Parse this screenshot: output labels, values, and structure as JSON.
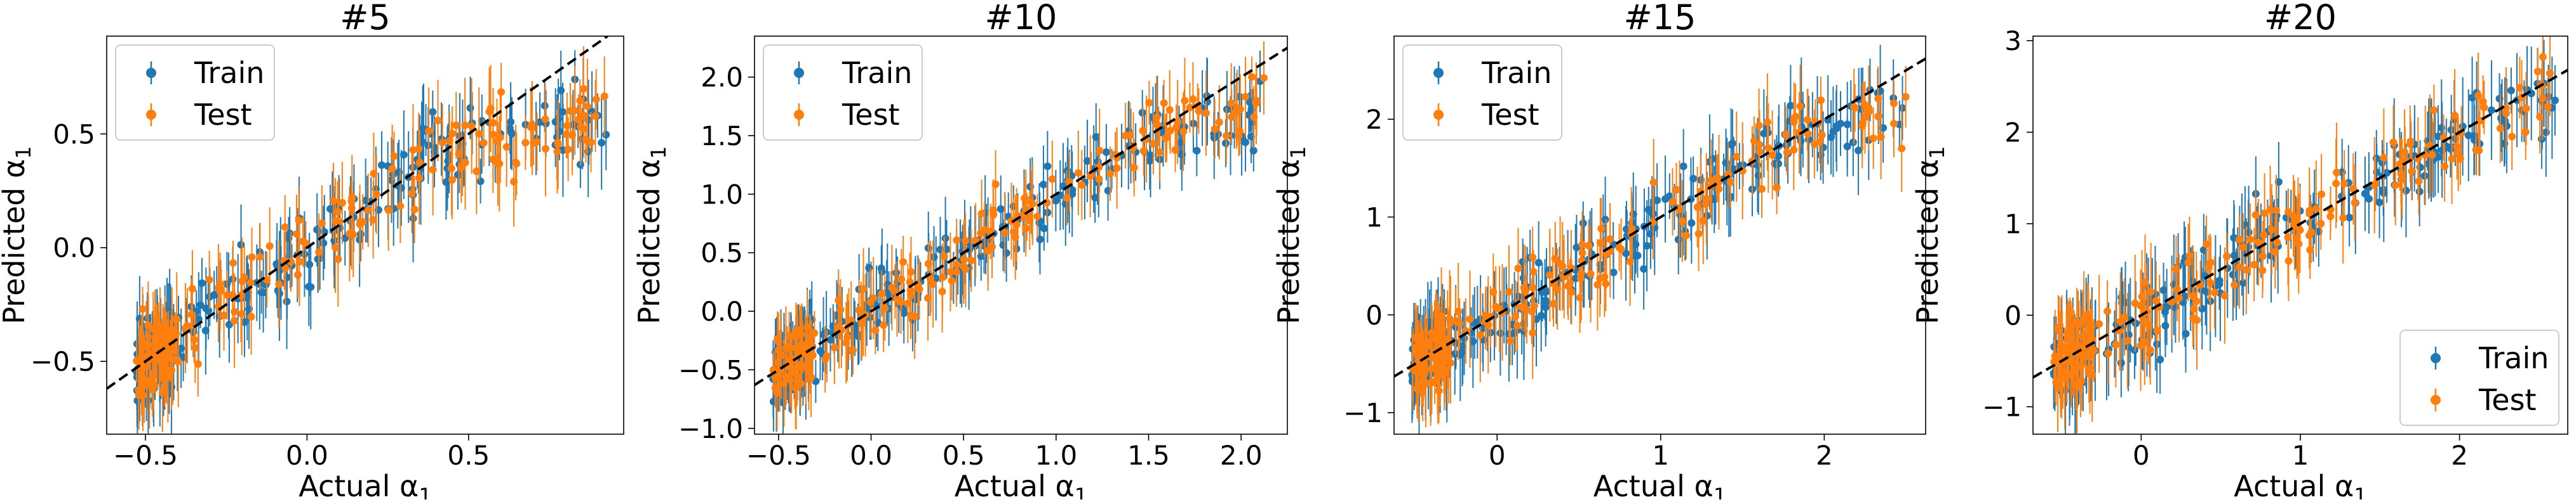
{
  "chart_data": [
    {
      "type": "scatter",
      "title": "#5",
      "xlabel": "Actual α",
      "ylabel": "Predicted α",
      "label_subscript": "1",
      "xlim": [
        -0.62,
        0.98
      ],
      "ylim": [
        -0.82,
        0.93
      ],
      "xticks": [
        -0.5,
        0.0,
        0.5
      ],
      "xticklabels": [
        "−0.5",
        "0.0",
        "0.5"
      ],
      "yticks": [
        -0.5,
        0.0,
        0.5
      ],
      "yticklabels": [
        "−0.5",
        "0.0",
        "0.5"
      ],
      "legend_position": "upper left",
      "grid": false,
      "identity_line": true,
      "x_range": [
        -0.53,
        0.93
      ],
      "y_spread": 0.16,
      "error_bar": 0.17,
      "saturation": 0.6,
      "series": [
        {
          "name": "Train",
          "color": "#1f77b4",
          "marker": "circle with error bars"
        },
        {
          "name": "Test",
          "color": "#ff7f0e",
          "marker": "circle with error bars"
        }
      ]
    },
    {
      "type": "scatter",
      "title": "#10",
      "xlabel": "Actual α",
      "ylabel": "Predicted α",
      "label_subscript": "1",
      "xlim": [
        -0.63,
        2.25
      ],
      "ylim": [
        -1.05,
        2.35
      ],
      "xticks": [
        -0.5,
        0.0,
        0.5,
        1.0,
        1.5,
        2.0
      ],
      "xticklabels": [
        "−0.5",
        "0.0",
        "0.5",
        "1.0",
        "1.5",
        "2.0"
      ],
      "yticks": [
        -1.0,
        -0.5,
        0.0,
        0.5,
        1.0,
        1.5,
        2.0
      ],
      "yticklabels": [
        "−1.0",
        "−0.5",
        "0.0",
        "0.5",
        "1.0",
        "1.5",
        "2.0"
      ],
      "legend_position": "upper left",
      "grid": false,
      "identity_line": true,
      "x_range": [
        -0.53,
        2.15
      ],
      "y_spread": 0.25,
      "error_bar": 0.3,
      "saturation": 1.75,
      "series": [
        {
          "name": "Train",
          "color": "#1f77b4",
          "marker": "circle with error bars"
        },
        {
          "name": "Test",
          "color": "#ff7f0e",
          "marker": "circle with error bars"
        }
      ]
    },
    {
      "type": "scatter",
      "title": "#15",
      "xlabel": "Actual α",
      "ylabel": "Predicted α",
      "label_subscript": "1",
      "xlim": [
        -0.63,
        2.62
      ],
      "ylim": [
        -1.22,
        2.85
      ],
      "xticks": [
        0,
        1,
        2
      ],
      "xticklabels": [
        "0",
        "1",
        "2"
      ],
      "yticks": [
        -1,
        0,
        1,
        2
      ],
      "yticklabels": [
        "−1",
        "0",
        "1",
        "2"
      ],
      "legend_position": "upper left",
      "grid": false,
      "identity_line": true,
      "x_range": [
        -0.52,
        2.5
      ],
      "y_spread": 0.32,
      "error_bar": 0.4,
      "saturation": 2.1,
      "series": [
        {
          "name": "Train",
          "color": "#1f77b4",
          "marker": "circle with error bars"
        },
        {
          "name": "Test",
          "color": "#ff7f0e",
          "marker": "circle with error bars"
        }
      ]
    },
    {
      "type": "scatter",
      "title": "#20",
      "xlabel": "Actual α",
      "ylabel": "Predicted α",
      "label_subscript": "1",
      "xlim": [
        -0.68,
        2.68
      ],
      "ylim": [
        -1.3,
        3.05
      ],
      "xticks": [
        0,
        1,
        2
      ],
      "xticklabels": [
        "0",
        "1",
        "2"
      ],
      "yticks": [
        -1,
        0,
        1,
        2,
        3
      ],
      "yticklabels": [
        "−1",
        "0",
        "1",
        "2",
        "3"
      ],
      "legend_position": "lower right",
      "grid": false,
      "identity_line": true,
      "x_range": [
        -0.55,
        2.6
      ],
      "y_spread": 0.36,
      "error_bar": 0.45,
      "saturation": 2.35,
      "series": [
        {
          "name": "Train",
          "color": "#1f77b4",
          "marker": "circle with error bars"
        },
        {
          "name": "Test",
          "color": "#ff7f0e",
          "marker": "circle with error bars"
        }
      ]
    }
  ]
}
